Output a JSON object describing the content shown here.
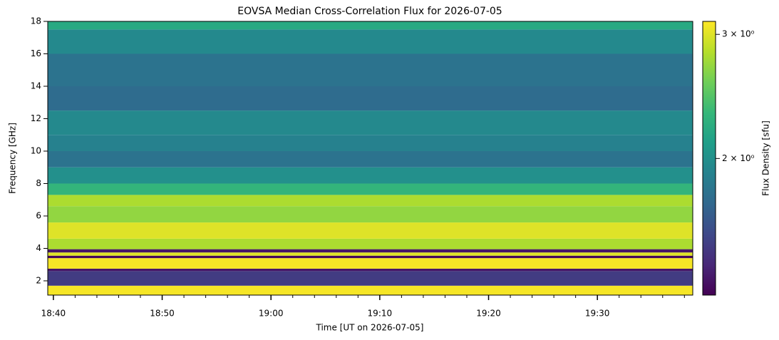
{
  "chart_data": {
    "type": "spectrogram",
    "title": "EOVSA Median Cross-Correlation Flux for 2026-07-05",
    "x_label": "Time [UT on 2026-07-05]",
    "y_label": "Frequency [GHz]",
    "colorbar_label": "Flux Density [sfu]",
    "colormap": "viridis",
    "color_scale": "log",
    "xlim": [
      "18:39:29",
      "19:38:46"
    ],
    "xticks": [
      "18:40",
      "18:50",
      "19:00",
      "19:10",
      "19:20",
      "19:30"
    ],
    "ylim": [
      1.12,
      18
    ],
    "yticks": [
      2,
      4,
      6,
      8,
      10,
      12,
      14,
      16,
      18
    ],
    "clim": [
      1.28,
      3.13
    ],
    "cticks": [
      {
        "value": 2,
        "label": "2 × 10⁰"
      },
      {
        "value": 3,
        "label": "3 × 10⁰"
      }
    ],
    "band_edges": [
      1.12,
      1.7,
      2.6,
      2.75,
      3.4,
      3.55,
      3.75,
      3.95,
      4.6,
      5.6,
      6.6,
      7.3,
      8,
      9,
      10,
      11,
      12.5,
      14,
      16,
      17.5,
      18
    ],
    "values": [
      3.1,
      1.5,
      1.35,
      3.1,
      1.3,
      3.0,
      1.35,
      2.8,
      3.0,
      2.7,
      2.8,
      2.3,
      2.0,
      1.8,
      1.9,
      1.95,
      1.75,
      1.8,
      1.95,
      2.2
    ]
  }
}
